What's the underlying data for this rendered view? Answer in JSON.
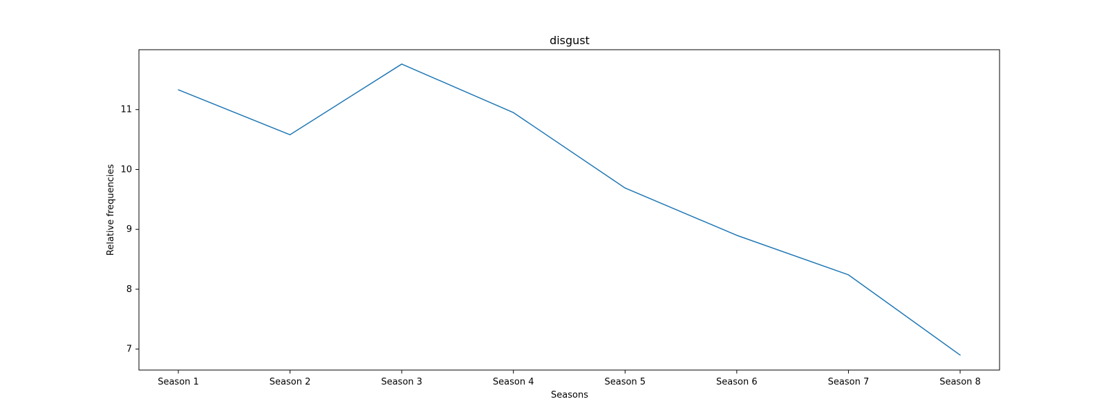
{
  "chart_data": {
    "type": "line",
    "title": "disgust",
    "xlabel": "Seasons",
    "ylabel": "Relative frequencies",
    "categories": [
      "Season 1",
      "Season 2",
      "Season 3",
      "Season 4",
      "Season 5",
      "Season 6",
      "Season 7",
      "Season 8"
    ],
    "series": [
      {
        "values": [
          11.33,
          10.58,
          11.76,
          10.95,
          9.69,
          8.9,
          8.24,
          6.9
        ],
        "color": "#1f77b4"
      }
    ],
    "yticks": [
      7,
      8,
      9,
      10,
      11
    ],
    "ytick_labels": [
      "7",
      "8",
      "9",
      "10",
      "11"
    ],
    "ylim": [
      6.65,
      12.0
    ],
    "grid": false,
    "legend": false
  }
}
